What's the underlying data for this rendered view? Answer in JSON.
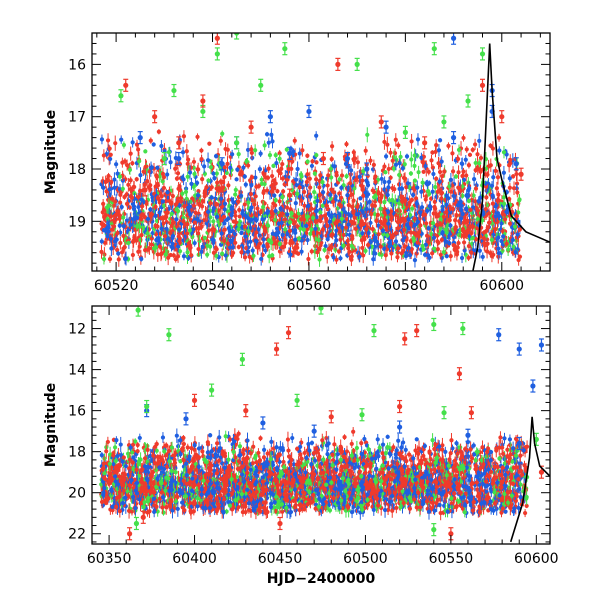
{
  "colors": {
    "blue": "#1f5fe0",
    "green": "#44e04a",
    "red": "#ef3a2c",
    "model": "#000000"
  },
  "chart_data": [
    {
      "type": "scatter",
      "title": "",
      "xlabel": "",
      "ylabel": "Magnitude",
      "xlim": [
        60515,
        60610
      ],
      "ylim": [
        19.95,
        15.4
      ],
      "y_inverted": true,
      "grid": false,
      "xticks": [
        60520,
        60540,
        60560,
        60580,
        60600
      ],
      "yticks": [
        16,
        17,
        18,
        19
      ],
      "series": [
        {
          "color_key": "blue",
          "points": [
            [
              60590,
              15.5
            ],
            [
              60598,
              16.5
            ],
            [
              60598,
              16.9
            ],
            [
              60576,
              17.2
            ],
            [
              60545,
              17.5
            ],
            [
              60552,
              17.0
            ],
            [
              60560,
              16.9
            ],
            [
              60556,
              17.7
            ],
            [
              60568,
              17.8
            ],
            [
              60525,
              17.4
            ],
            [
              60533,
              17.8
            ],
            [
              60542,
              17.9
            ],
            [
              60572,
              18.0
            ],
            [
              60590,
              17.4
            ],
            [
              60603,
              17.9
            ]
          ]
        },
        {
          "color_key": "green",
          "points": [
            [
              60545,
              15.4
            ],
            [
              60541,
              15.8
            ],
            [
              60555,
              15.7
            ],
            [
              60570,
              16.0
            ],
            [
              60586,
              15.7
            ],
            [
              60596,
              15.8
            ],
            [
              60521,
              16.6
            ],
            [
              60532,
              16.5
            ],
            [
              60538,
              16.9
            ],
            [
              60550,
              16.4
            ],
            [
              60580,
              17.3
            ],
            [
              60588,
              17.1
            ],
            [
              60593,
              16.7
            ],
            [
              60545,
              17.5
            ],
            [
              60530,
              17.8
            ]
          ]
        },
        {
          "color_key": "red",
          "points": [
            [
              60541,
              15.5
            ],
            [
              60522,
              16.4
            ],
            [
              60528,
              17.0
            ],
            [
              60533,
              17.5
            ],
            [
              60538,
              16.7
            ],
            [
              60548,
              17.2
            ],
            [
              60566,
              16.0
            ],
            [
              60575,
              17.1
            ],
            [
              60584,
              17.5
            ],
            [
              60596,
              16.4
            ],
            [
              60600,
              17.0
            ],
            [
              60604,
              18.1
            ],
            [
              60526,
              18.4
            ],
            [
              60556,
              18.5
            ],
            [
              60563,
              17.8
            ]
          ]
        }
      ],
      "model_curve": {
        "color_key": "model",
        "x": [
          60594,
          60595,
          60596,
          60597,
          60597.5,
          60598,
          60599,
          60600,
          60602,
          60605,
          60610
        ],
        "y": [
          19.95,
          19.5,
          18.6,
          16.6,
          15.6,
          16.5,
          17.8,
          18.2,
          18.9,
          19.2,
          19.4
        ]
      }
    },
    {
      "type": "scatter",
      "title": "",
      "xlabel": "HJD−2400000",
      "ylabel": "Magnitude",
      "xlim": [
        60340,
        60608
      ],
      "ylim": [
        22.5,
        10.9
      ],
      "y_inverted": true,
      "grid": false,
      "xticks": [
        60350,
        60400,
        60450,
        60500,
        60550,
        60600
      ],
      "yticks": [
        12,
        14,
        16,
        18,
        20,
        22
      ],
      "series": [
        {
          "color_key": "blue",
          "points": [
            [
              60578,
              12.3
            ],
            [
              60590,
              13.0
            ],
            [
              60603,
              12.8
            ],
            [
              60598,
              14.8
            ],
            [
              60372,
              16.0
            ],
            [
              60395,
              16.4
            ],
            [
              60440,
              16.6
            ],
            [
              60470,
              17.0
            ],
            [
              60520,
              16.8
            ],
            [
              60560,
              17.2
            ],
            [
              60590,
              17.6
            ]
          ]
        },
        {
          "color_key": "green",
          "points": [
            [
              60367,
              11.1
            ],
            [
              60474,
              11.0
            ],
            [
              60385,
              12.3
            ],
            [
              60505,
              12.1
            ],
            [
              60540,
              11.8
            ],
            [
              60557,
              12.0
            ],
            [
              60428,
              13.5
            ],
            [
              60372,
              15.8
            ],
            [
              60410,
              15.0
            ],
            [
              60460,
              15.5
            ],
            [
              60498,
              16.2
            ],
            [
              60546,
              16.1
            ],
            [
              60600,
              17.4
            ],
            [
              60366,
              21.5
            ],
            [
              60540,
              21.8
            ]
          ]
        },
        {
          "color_key": "red",
          "points": [
            [
              60523,
              12.5
            ],
            [
              60530,
              12.1
            ],
            [
              60455,
              12.2
            ],
            [
              60448,
              13.0
            ],
            [
              60555,
              14.2
            ],
            [
              60400,
              15.5
            ],
            [
              60430,
              16.0
            ],
            [
              60480,
              16.3
            ],
            [
              60520,
              15.8
            ],
            [
              60562,
              16.1
            ],
            [
              60370,
              21.2
            ],
            [
              60362,
              22.0
            ],
            [
              60450,
              21.5
            ],
            [
              60550,
              22.0
            ],
            [
              60603,
              19.0
            ]
          ]
        }
      ],
      "model_curve": {
        "color_key": "model",
        "x": [
          60585,
          60592,
          60596,
          60597.5,
          60599,
          60602,
          60608
        ],
        "y": [
          22.4,
          20.5,
          18.3,
          16.3,
          17.6,
          18.7,
          19.2
        ]
      }
    }
  ]
}
